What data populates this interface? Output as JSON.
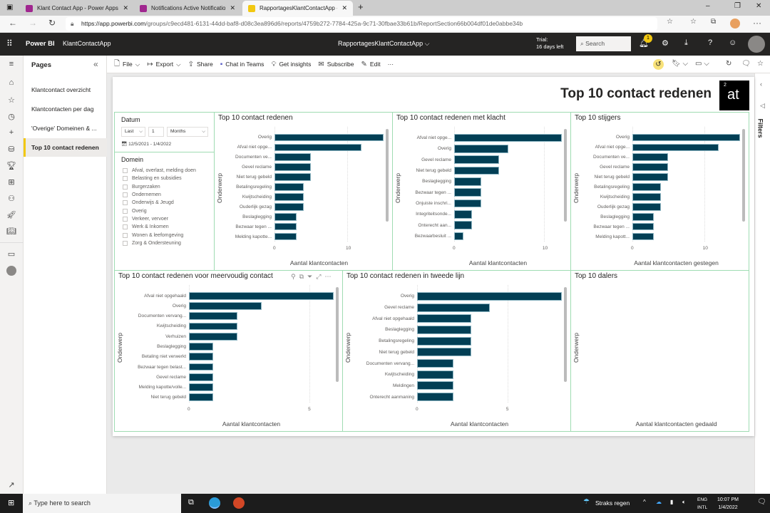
{
  "browser": {
    "tabs": [
      {
        "label": "Klant Contact App - Power Apps"
      },
      {
        "label": "Notifications Active Notifications"
      },
      {
        "label": "RapportagesKlantContactApp - Power BI"
      }
    ],
    "url_host": "https://app.powerbi.com",
    "url_path": "/groups/c9ecd481-6131-44dd-baf8-d08c3ea896d6/reports/4759b272-7784-425a-9c71-30fbae33b61b/ReportSection66b004df01de0abbe34b"
  },
  "pbi": {
    "brand": "Power BI",
    "workspace": "KlantContactApp",
    "report": "RapportagesKlantContactApp",
    "trial_line1": "Trial:",
    "trial_line2": "16 days left",
    "search_placeholder": "Search",
    "notif_count": "1"
  },
  "pages": {
    "title": "Pages",
    "items": [
      {
        "label": "Klantcontact overzicht"
      },
      {
        "label": "Klantcontacten per dag"
      },
      {
        "label": "'Overige' Domeinen & ..."
      },
      {
        "label": "Top 10 contact redenen"
      }
    ]
  },
  "toolbar": {
    "file": "File",
    "export": "Export",
    "share": "Share",
    "chat": "Chat in Teams",
    "insights": "Get insights",
    "subscribe": "Subscribe",
    "edit": "Edit"
  },
  "filters_label": "Filters",
  "report": {
    "title": "Top 10 contact redenen",
    "logo_text": "at",
    "logo_sup": "2"
  },
  "datum": {
    "title": "Datum",
    "mode": "Last",
    "count": "1",
    "unit": "Months",
    "range": "12/5/2021 - 1/4/2022"
  },
  "domein": {
    "title": "Domein",
    "items": [
      "Afval, overlast, melding doen",
      "Belasting en subsidies",
      "Burgerzaken",
      "Ondernemen",
      "Onderwijs & Jeugd",
      "Overig",
      "Verkeer, vervoer",
      "Werk & Inkomen",
      "Wonen & leefomgeving",
      "Zorg & Ondersteuning"
    ]
  },
  "chart_data": [
    {
      "type": "bar",
      "title": "Top 10 contact redenen",
      "ylabel": "Onderwerp",
      "xlabel": "Aantal klantcontacten",
      "categories": [
        "Overig",
        "Afval niet opge...",
        "Documenten ve...",
        "Gevel reclame",
        "Niet terug gebeld",
        "Betalingsregeling",
        "Kwijtscheiding",
        "Ouderlijk gezag",
        "Beslaglegging",
        "Bezwaar tegen ...",
        "Melding kapotte..."
      ],
      "values": [
        15,
        12,
        5,
        5,
        5,
        4,
        4,
        4,
        3,
        3,
        3
      ],
      "xlim": [
        0,
        15
      ],
      "ticks": [
        0,
        10
      ]
    },
    {
      "type": "bar",
      "title": "Top 10 contact redenen met klacht",
      "ylabel": "Onderwerp",
      "xlabel": "Aantal klantcontacten",
      "categories": [
        "Afval niet opge...",
        "Overig",
        "Gevel reclame",
        "Niet terug gebeld",
        "Beslaglegging",
        "Bezwaar tegen ...",
        "Onjuiste inschri...",
        "Integriteitsonde...",
        "Onterecht aan...",
        "Bezwaarbesluit ..."
      ],
      "values": [
        12,
        6,
        5,
        5,
        3,
        3,
        3,
        2,
        2,
        1
      ],
      "xlim": [
        0,
        12
      ],
      "ticks": [
        0,
        10
      ]
    },
    {
      "type": "bar",
      "title": "Top 10 stijgers",
      "ylabel": "Onderwerp",
      "xlabel": "Aantal klantcontacten gestegen",
      "categories": [
        "Overig",
        "Afval niet opge...",
        "Documenten ve...",
        "Gevel reclame",
        "Niet terug gebeld",
        "Betalingsregeling",
        "Kwijtscheiding",
        "Ouderlijk gezag",
        "Beslaglegging",
        "Bezwaar tegen ...",
        "Melding kapott..."
      ],
      "values": [
        15,
        12,
        5,
        5,
        5,
        4,
        4,
        4,
        3,
        3,
        3
      ],
      "xlim": [
        0,
        15
      ],
      "ticks": [
        0,
        10
      ]
    },
    {
      "type": "bar",
      "title": "Top 10 contact redenen voor meervoudig contact",
      "ylabel": "Onderwerp",
      "xlabel": "Aantal klantcontacten",
      "categories": [
        "Afval niet opgehaald",
        "Overig",
        "Documenten vervang...",
        "Kwijtscheiding",
        "Verhuizen",
        "Beslaglegging",
        "Betaling niet verwerkt",
        "Bezwaar tegen belast...",
        "Gevel reclame",
        "Melding kapotte/volle...",
        "Niet terug gebeld"
      ],
      "values": [
        6,
        3,
        2,
        2,
        2,
        1,
        1,
        1,
        1,
        1,
        1
      ],
      "xlim": [
        0,
        6
      ],
      "ticks": [
        0,
        5
      ]
    },
    {
      "type": "bar",
      "title": "Top 10 contact redenen in tweede lijn",
      "ylabel": "Onderwerp",
      "xlabel": "Aantal klantcontacten",
      "categories": [
        "Overig",
        "Gevel reclame",
        "Afval niet opgehaald",
        "Beslaglegging",
        "Betalingsregeling",
        "Niet terug gebeld",
        "Documenten vervang...",
        "Kwijtscheiding",
        "Meldingen",
        "Onterecht aanmaning"
      ],
      "values": [
        8,
        4,
        3,
        3,
        3,
        3,
        2,
        2,
        2,
        2
      ],
      "xlim": [
        0,
        8
      ],
      "ticks": [
        0,
        5
      ]
    },
    {
      "type": "bar",
      "title": "Top 10 dalers",
      "ylabel": "Onderwerp",
      "xlabel": "Aantal klantcontacten gedaald",
      "categories": [],
      "values": [],
      "xlim": [
        0,
        1
      ],
      "ticks": []
    }
  ],
  "colors": {
    "bar": "#023f55",
    "border": "#9fdcb2",
    "accent": "#f2c811"
  },
  "taskbar": {
    "search_placeholder": "Type here to search",
    "weather": "Straks regen",
    "lang1": "ENG",
    "lang2": "INTL",
    "time": "10:07 PM",
    "date": "1/4/2022"
  }
}
